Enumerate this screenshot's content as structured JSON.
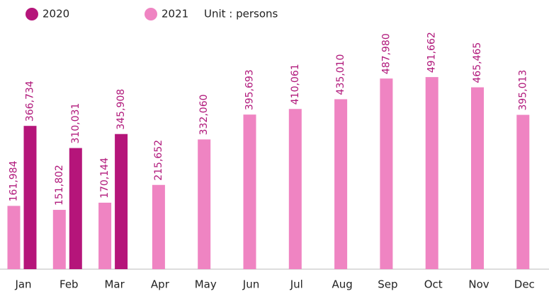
{
  "chart_data": {
    "type": "bar",
    "unit": "Unit : persons",
    "categories": [
      "Jan",
      "Feb",
      "Mar",
      "Apr",
      "May",
      "Jun",
      "Jul",
      "Aug",
      "Sep",
      "Oct",
      "Nov",
      "Dec"
    ],
    "series": [
      {
        "name": "2020",
        "color": "#b5157a",
        "values": [
          366734,
          310031,
          345908,
          null,
          null,
          null,
          null,
          null,
          null,
          null,
          null,
          null
        ],
        "value_labels": [
          "366,734",
          "310,031",
          "345,908",
          null,
          null,
          null,
          null,
          null,
          null,
          null,
          null,
          null
        ]
      },
      {
        "name": "2021",
        "color": "#ef84c2",
        "values": [
          161984,
          151802,
          170144,
          215652,
          332060,
          395693,
          410061,
          435010,
          487980,
          491662,
          465465,
          395013
        ],
        "value_labels": [
          "161,984",
          "151,802",
          "170,144",
          "215,652",
          "332,060",
          "395,693",
          "410,061",
          "435,010",
          "487,980",
          "491,662",
          "465,465",
          "395,013"
        ]
      }
    ],
    "ylim": [
      0,
      500000
    ]
  }
}
